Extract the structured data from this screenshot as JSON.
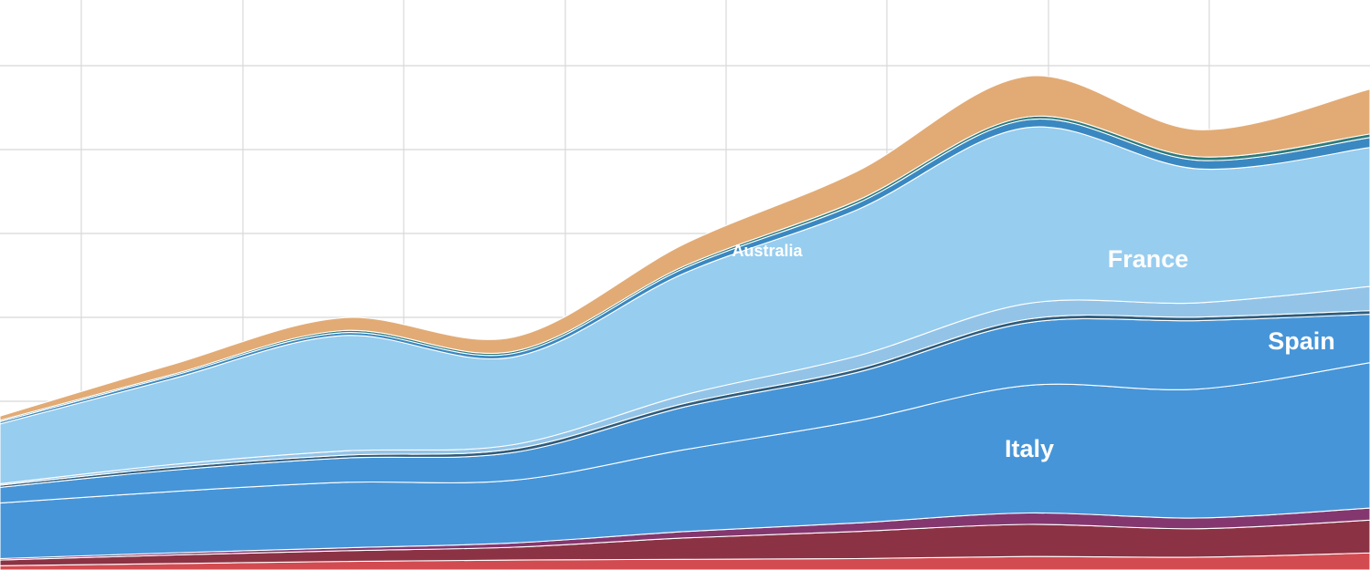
{
  "chart_data": {
    "type": "area",
    "stacked": true,
    "x": [
      0,
      1,
      2,
      3,
      4,
      5,
      6,
      7,
      8
    ],
    "ylim": [
      0,
      8
    ],
    "grid": true,
    "legend": "none",
    "series": [
      {
        "name": "",
        "color": "#d24b50",
        "values": [
          0.06,
          0.09,
          0.12,
          0.14,
          0.15,
          0.16,
          0.19,
          0.18,
          0.24
        ]
      },
      {
        "name": "",
        "color": "#8b3344",
        "values": [
          0.08,
          0.12,
          0.15,
          0.18,
          0.3,
          0.38,
          0.45,
          0.4,
          0.46
        ]
      },
      {
        "name": "",
        "color": "#84376f",
        "values": [
          0.02,
          0.03,
          0.04,
          0.06,
          0.09,
          0.12,
          0.16,
          0.15,
          0.17
        ]
      },
      {
        "name": "Italy",
        "color": "#4695d8",
        "values": [
          0.78,
          0.86,
          0.92,
          0.88,
          1.15,
          1.43,
          1.79,
          1.81,
          2.04
        ]
      },
      {
        "name": "Spain",
        "color": "#4695d8",
        "values": [
          0.22,
          0.3,
          0.34,
          0.39,
          0.6,
          0.68,
          0.88,
          0.96,
          0.68
        ]
      },
      {
        "name": "",
        "color": "#2e5c7c",
        "values": [
          0.03,
          0.04,
          0.04,
          0.05,
          0.05,
          0.05,
          0.05,
          0.05,
          0.05
        ]
      },
      {
        "name": "",
        "color": "#93c4e8",
        "values": [
          0.02,
          0.04,
          0.06,
          0.06,
          0.12,
          0.18,
          0.22,
          0.2,
          0.34
        ]
      },
      {
        "name": "France",
        "color": "#97cdef",
        "values": [
          0.84,
          1.2,
          1.62,
          1.23,
          1.71,
          2.05,
          2.47,
          1.88,
          1.95
        ]
      },
      {
        "name": "",
        "color": "#3a88c2",
        "values": [
          0.03,
          0.04,
          0.04,
          0.05,
          0.07,
          0.09,
          0.11,
          0.12,
          0.14
        ]
      },
      {
        "name": "",
        "color": "#2d7b7b",
        "values": [
          0.02,
          0.02,
          0.03,
          0.03,
          0.03,
          0.04,
          0.04,
          0.05,
          0.05
        ]
      },
      {
        "name": "Australia",
        "color": "#e2ab75",
        "values": [
          0.06,
          0.14,
          0.18,
          0.2,
          0.31,
          0.41,
          0.57,
          0.38,
          0.63
        ]
      }
    ],
    "annotations": [
      "Australia",
      "France",
      "Spain",
      "Italy"
    ]
  }
}
